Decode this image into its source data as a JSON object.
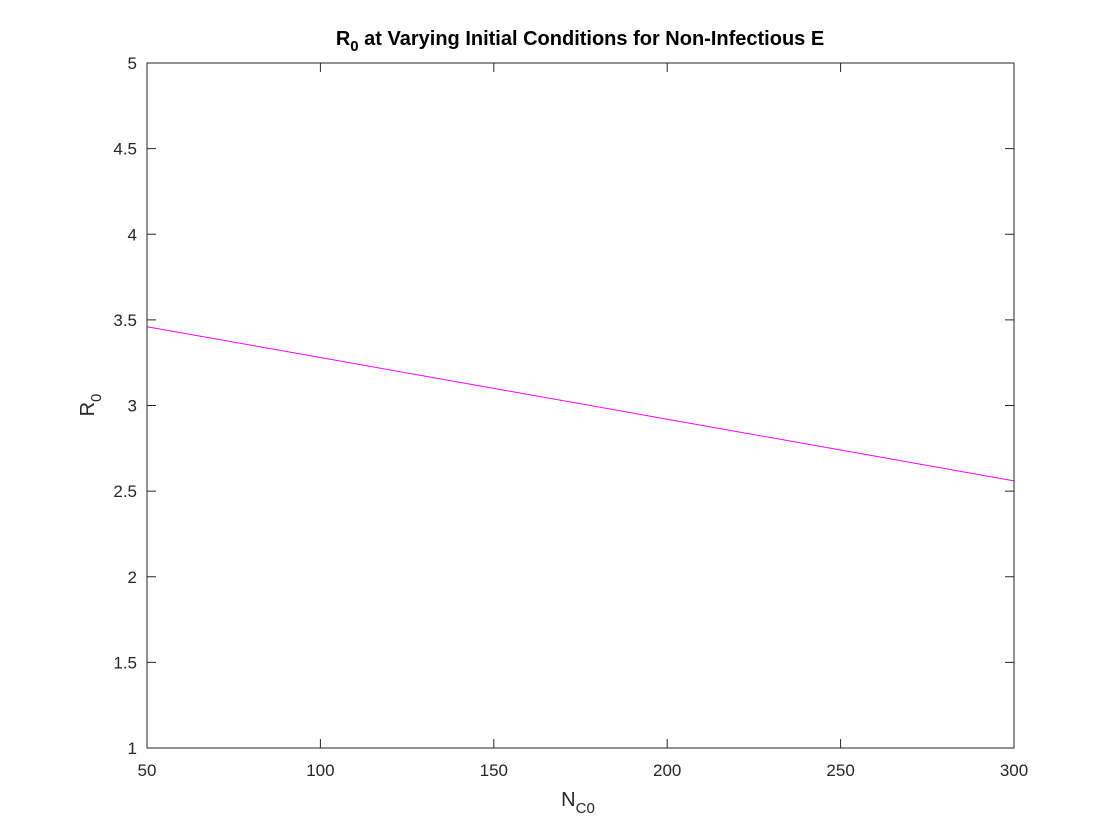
{
  "chart_data": {
    "type": "line",
    "title": {
      "prefix": "R",
      "subscript": "0",
      "suffix": " at Varying Initial Conditions for Non-Infectious E"
    },
    "xlabel": {
      "main": "N",
      "subscript": "C0"
    },
    "ylabel": {
      "main": "R",
      "subscript": "0"
    },
    "xlim": [
      50,
      300
    ],
    "ylim": [
      1,
      5
    ],
    "xticks": [
      50,
      100,
      150,
      200,
      250,
      300
    ],
    "yticks": [
      1,
      1.5,
      2,
      2.5,
      3,
      3.5,
      4,
      4.5,
      5
    ],
    "xtick_labels": [
      "50",
      "100",
      "150",
      "200",
      "250",
      "300"
    ],
    "ytick_labels": [
      "1",
      "1.5",
      "2",
      "2.5",
      "3",
      "3.5",
      "4",
      "4.5",
      "5"
    ],
    "grid": false,
    "legend": "none",
    "series": [
      {
        "color": "#ff00ff",
        "x": [
          50,
          100,
          150,
          200,
          250,
          300
        ],
        "y": [
          3.46,
          3.28,
          3.1,
          2.92,
          2.74,
          2.56
        ]
      }
    ]
  }
}
